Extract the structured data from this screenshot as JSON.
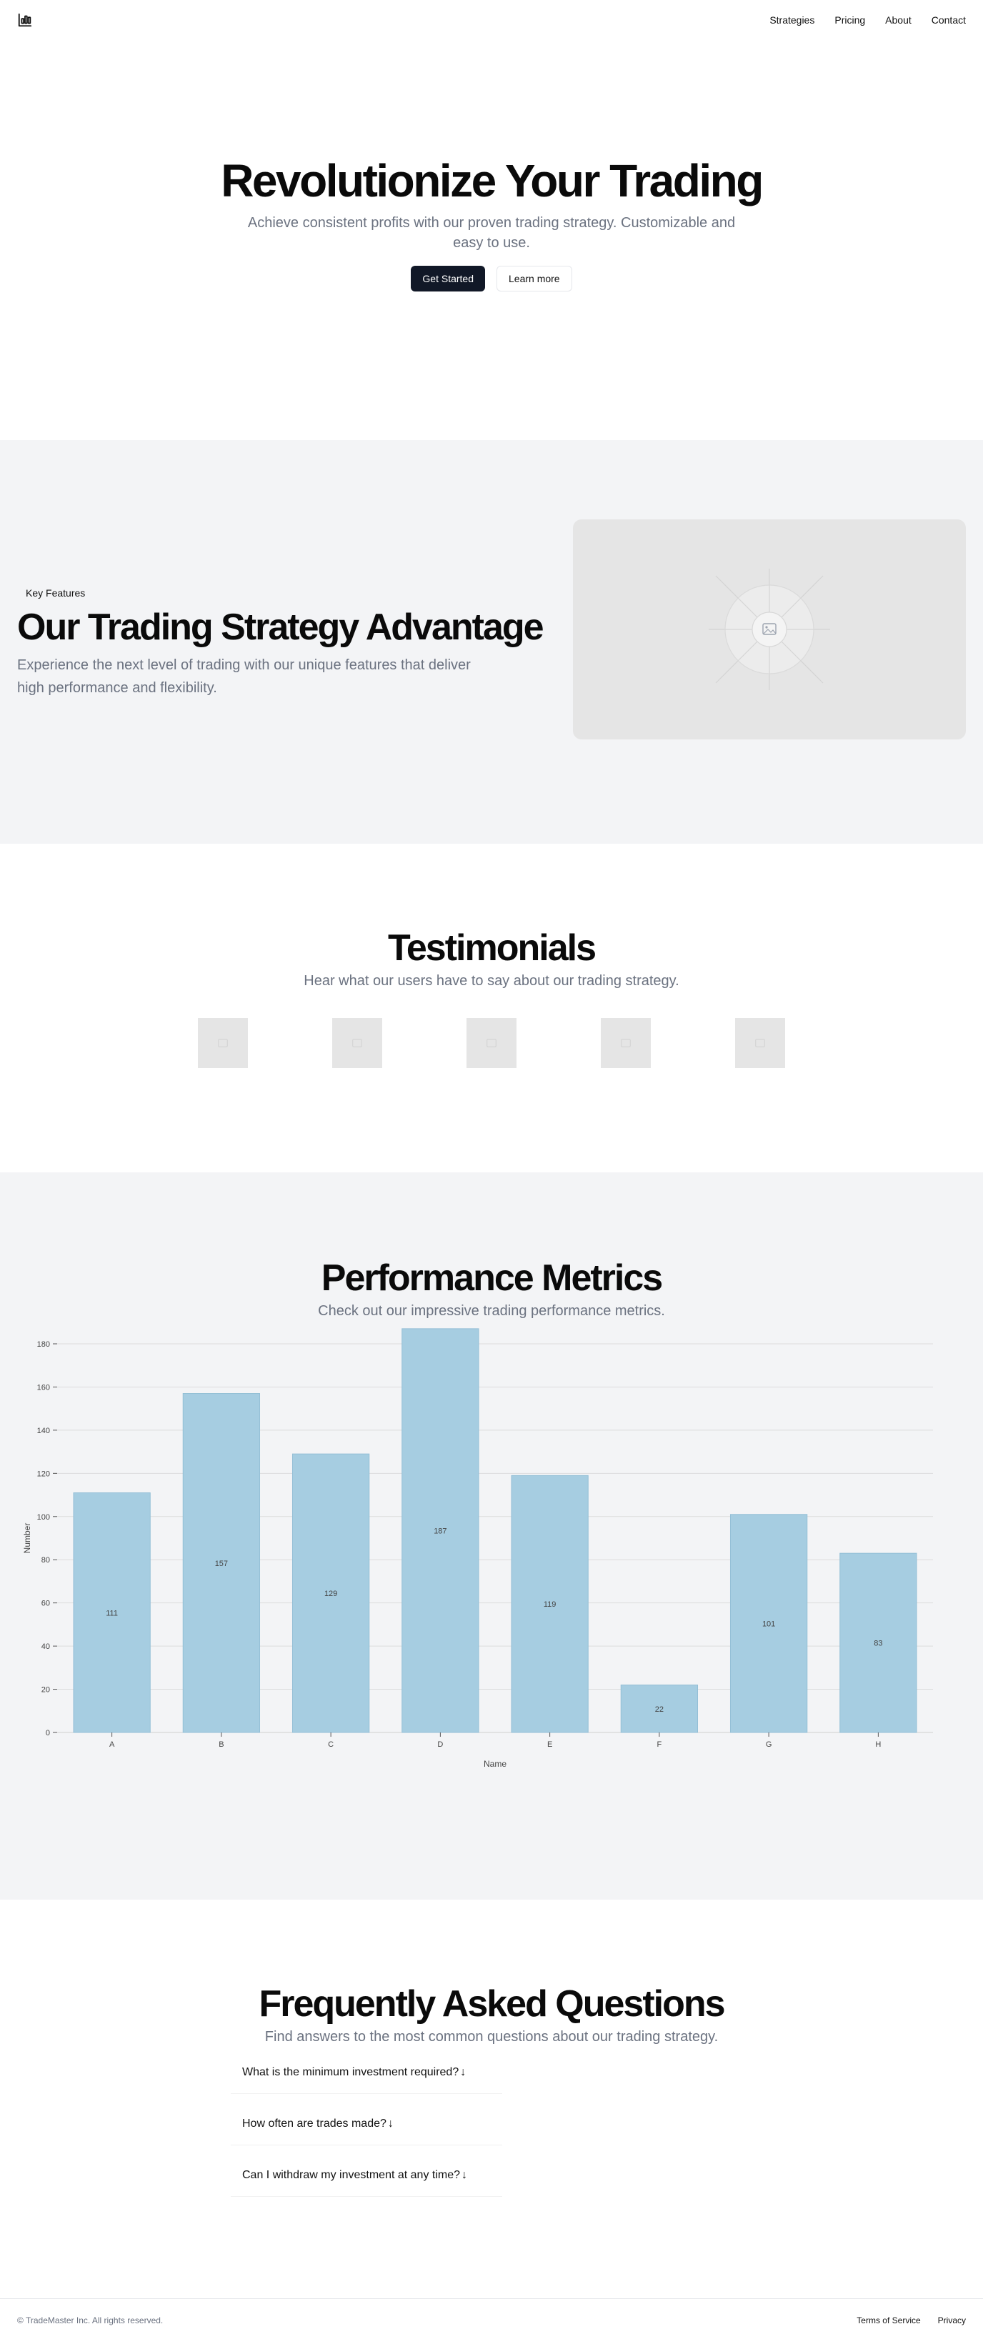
{
  "nav": {
    "items": [
      "Strategies",
      "Pricing",
      "About",
      "Contact"
    ]
  },
  "hero": {
    "title": "Revolutionize Your Trading",
    "subtitle": "Achieve consistent profits with our proven trading strategy. Customizable and easy to use.",
    "primary_label": "Get Started",
    "secondary_label": "Learn more"
  },
  "features": {
    "badge": "Key Features",
    "title": "Our Trading Strategy Advantage",
    "description": "Experience the next level of trading with our unique features that deliver high performance and flexibility."
  },
  "testimonials": {
    "title": "Testimonials",
    "subtitle": "Hear what our users have to say about our trading strategy."
  },
  "metrics": {
    "title": "Performance Metrics",
    "subtitle": "Check out our impressive trading performance metrics."
  },
  "chart_data": {
    "type": "bar",
    "categories": [
      "A",
      "B",
      "C",
      "D",
      "E",
      "F",
      "G",
      "H"
    ],
    "values": [
      111,
      157,
      129,
      187,
      119,
      22,
      101,
      83
    ],
    "xlabel": "Name",
    "ylabel": "Number",
    "ylim": [
      0,
      180
    ],
    "yticks": [
      0,
      20,
      40,
      60,
      80,
      100,
      120,
      140,
      160,
      180
    ],
    "grid": true,
    "bar_color": "#a6cde1"
  },
  "faq": {
    "title": "Frequently Asked Questions",
    "subtitle": "Find answers to the most common questions about our trading strategy.",
    "items": [
      "What is the minimum investment required?",
      "How often are trades made?",
      "Can I withdraw my investment at any time?"
    ],
    "arrow": "↓"
  },
  "footer": {
    "copyright": "© TradeMaster Inc. All rights reserved.",
    "links": [
      "Terms of Service",
      "Privacy"
    ]
  },
  "colors": {
    "primary_button": "#111827",
    "muted_text": "#6b7280",
    "section_bg": "#f3f4f6",
    "placeholder": "#e5e5e5"
  }
}
